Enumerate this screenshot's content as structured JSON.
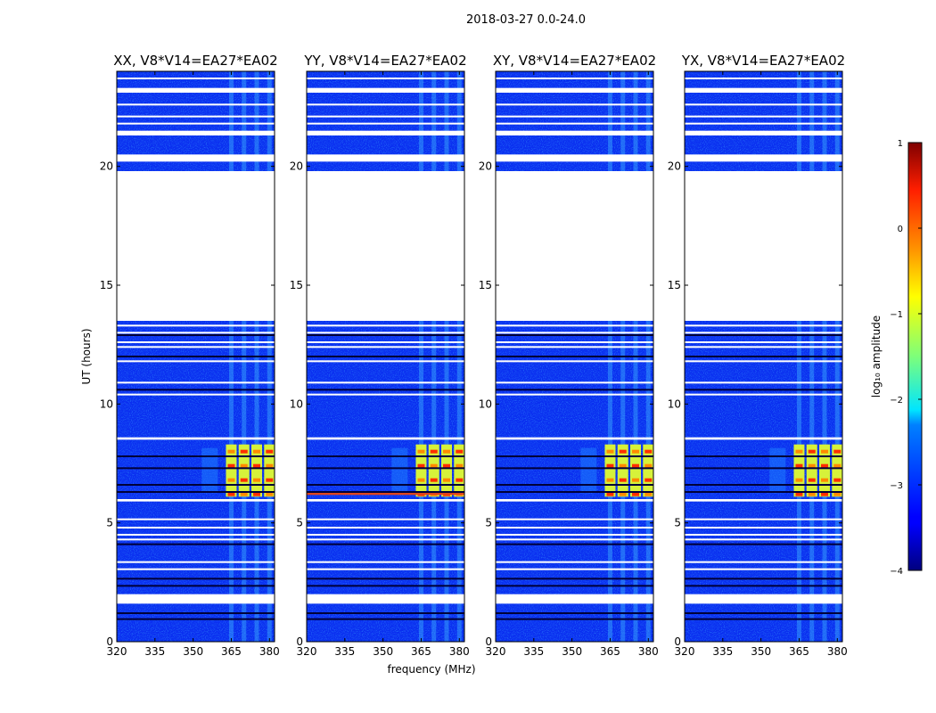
{
  "figure": {
    "suptitle": "2018-03-27 0.0-24.0",
    "xlabel": "frequency (MHz)",
    "ylabel": "UT (hours)"
  },
  "chart_data": {
    "type": "heatmap",
    "xlim": [
      320,
      382
    ],
    "ylim": [
      0,
      24
    ],
    "xticks": [
      320,
      335,
      350,
      365,
      380
    ],
    "yticks": [
      0,
      5,
      10,
      15,
      20
    ],
    "panels": [
      {
        "title": "XX, V8*V14=EA27*EA02",
        "burst_start_mhz": 359
      },
      {
        "title": "YY, V8*V14=EA27*EA02",
        "burst_start_mhz": 359,
        "broadband_row_ut": 6.25
      },
      {
        "title": "XY, V8*V14=EA27*EA02",
        "burst_start_mhz": 359
      },
      {
        "title": "YX, V8*V14=EA27*EA02",
        "burst_start_mhz": 359
      }
    ],
    "no_data_ut_ranges": [
      [
        13.5,
        19.8
      ],
      [
        1.6,
        2.0
      ],
      [
        8.5,
        8.6
      ],
      [
        5.9,
        6.0
      ],
      [
        20.2,
        20.5
      ],
      [
        21.3,
        21.5
      ],
      [
        23.1,
        23.3
      ]
    ],
    "dark_lines_ut": [
      0.95,
      1.2,
      2.35,
      2.65,
      4.1,
      6.3,
      6.6,
      7.3,
      7.8,
      10.6,
      12.0,
      12.9
    ],
    "white_lines_ut": [
      3.05,
      3.35,
      4.3,
      4.5,
      4.8,
      5.15,
      10.4,
      10.9,
      11.8,
      12.4,
      12.6,
      13.0,
      13.3,
      21.8,
      22.1,
      22.6,
      23.7
    ],
    "rfi_band_centers_mhz": [
      365,
      370,
      375,
      380
    ],
    "burst_ut_range": [
      6.1,
      8.3
    ],
    "colorbar": {
      "label": "log₁₀ amplitude",
      "ticks": [
        "1",
        "0",
        "−1",
        "−2",
        "−3",
        "−4"
      ],
      "range": [
        -4,
        1
      ]
    }
  }
}
